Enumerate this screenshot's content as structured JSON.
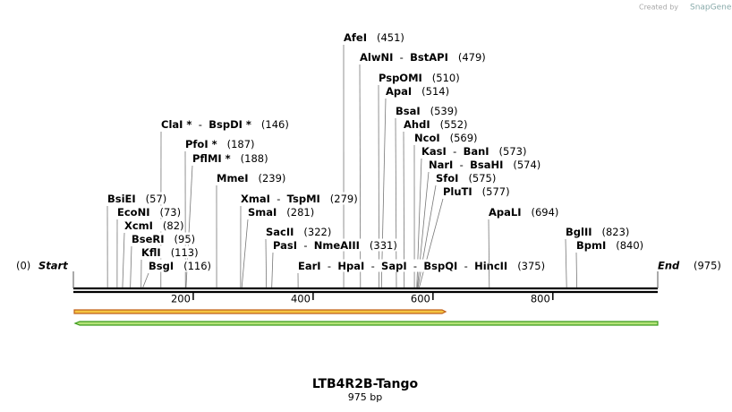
{
  "watermark": {
    "prefix": "Created by",
    "brand": "SnapGene"
  },
  "title": "LTB4R2B-Tango",
  "length_label": "975 bp",
  "length": 975,
  "start": {
    "label": "Start",
    "position": 0,
    "position_label": "(0)"
  },
  "end": {
    "label": "End",
    "position": 975,
    "position_label": "(975)"
  },
  "ruler": {
    "ticks": [
      200,
      400,
      600,
      800
    ]
  },
  "sites": [
    {
      "names": [
        "AfeI"
      ],
      "position": 451,
      "position_label": "(451)"
    },
    {
      "names": [
        "AlwNI",
        "BstAPI"
      ],
      "position": 479,
      "position_label": "(479)"
    },
    {
      "names": [
        "PspOMI"
      ],
      "position": 510,
      "position_label": "(510)"
    },
    {
      "names": [
        "ApaI"
      ],
      "position": 514,
      "position_label": "(514)"
    },
    {
      "names": [
        "BsaI"
      ],
      "position": 539,
      "position_label": "(539)"
    },
    {
      "names": [
        "AhdI"
      ],
      "position": 552,
      "position_label": "(552)"
    },
    {
      "names": [
        "NcoI"
      ],
      "position": 569,
      "position_label": "(569)"
    },
    {
      "names": [
        "KasI",
        "BanI"
      ],
      "position": 573,
      "position_label": "(573)"
    },
    {
      "names": [
        "NarI",
        "BsaHI"
      ],
      "position": 574,
      "position_label": "(574)"
    },
    {
      "names": [
        "SfoI"
      ],
      "position": 575,
      "position_label": "(575)"
    },
    {
      "names": [
        "PluTI"
      ],
      "position": 577,
      "position_label": "(577)"
    },
    {
      "names": [
        "ClaI *",
        "BspDI *"
      ],
      "position": 146,
      "position_label": "(146)"
    },
    {
      "names": [
        "PfoI *"
      ],
      "position": 187,
      "position_label": "(187)"
    },
    {
      "names": [
        "PflMI *"
      ],
      "position": 188,
      "position_label": "(188)"
    },
    {
      "names": [
        "MmeI"
      ],
      "position": 239,
      "position_label": "(239)"
    },
    {
      "names": [
        "XmaI",
        "TspMI"
      ],
      "position": 279,
      "position_label": "(279)"
    },
    {
      "names": [
        "SmaI"
      ],
      "position": 281,
      "position_label": "(281)"
    },
    {
      "names": [
        "BsiEI"
      ],
      "position": 57,
      "position_label": "(57)"
    },
    {
      "names": [
        "EcoNI"
      ],
      "position": 73,
      "position_label": "(73)"
    },
    {
      "names": [
        "XcmI"
      ],
      "position": 82,
      "position_label": "(82)"
    },
    {
      "names": [
        "BseRI"
      ],
      "position": 95,
      "position_label": "(95)"
    },
    {
      "names": [
        "KflI"
      ],
      "position": 113,
      "position_label": "(113)"
    },
    {
      "names": [
        "BsgI"
      ],
      "position": 116,
      "position_label": "(116)"
    },
    {
      "names": [
        "SacII"
      ],
      "position": 322,
      "position_label": "(322)"
    },
    {
      "names": [
        "PasI",
        "NmeAIII"
      ],
      "position": 331,
      "position_label": "(331)"
    },
    {
      "names": [
        "EarI",
        "HpaI",
        "SapI",
        "BspQI",
        "HincII"
      ],
      "position": 375,
      "position_label": "(375)"
    },
    {
      "names": [
        "ApaLI"
      ],
      "position": 694,
      "position_label": "(694)"
    },
    {
      "names": [
        "BglII"
      ],
      "position": 823,
      "position_label": "(823)"
    },
    {
      "names": [
        "BpmI"
      ],
      "position": 840,
      "position_label": "(840)"
    }
  ]
}
